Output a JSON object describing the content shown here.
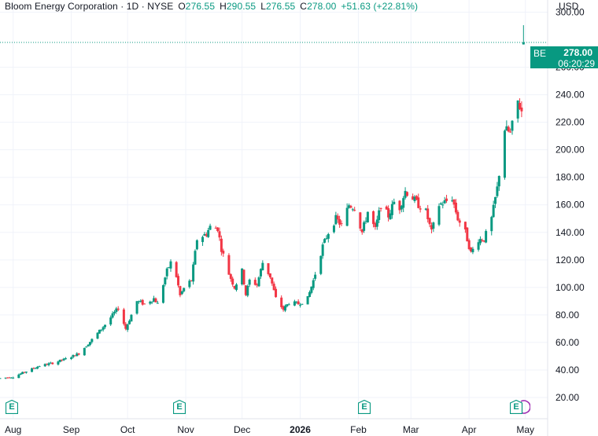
{
  "legend": {
    "title": "Bloom Energy Corporation · 1D · NYSE",
    "open_label": "O",
    "open": "276.55",
    "high_label": "H",
    "high": "290.55",
    "low_label": "L",
    "low": "276.55",
    "close_label": "C",
    "close": "278.00",
    "change": "+51.63 (+22.81%)"
  },
  "currency": "USD",
  "price_tag": {
    "ticker": "BE",
    "price": "278.00",
    "countdown": "06:20:29"
  },
  "earnings_markers": [
    {
      "label": "E"
    },
    {
      "label": "E"
    },
    {
      "label": "E"
    },
    {
      "label": "E"
    }
  ],
  "colors": {
    "up": "#089981",
    "down": "#f23645",
    "grid": "#f0f3fa",
    "text": "#131722"
  },
  "chart_data": {
    "type": "candlestick",
    "ylim": [
      12,
      302
    ],
    "yticks": [
      20,
      40,
      60,
      80,
      100,
      120,
      140,
      160,
      180,
      200,
      220,
      240,
      260,
      300
    ],
    "ytick_labels": [
      "20.00",
      "40.00",
      "60.00",
      "80.00",
      "100.00",
      "120.00",
      "140.00",
      "160.00",
      "180.00",
      "200.00",
      "220.00",
      "240.00",
      "260.00",
      "300.00"
    ],
    "x_range": [
      "2025-07-25",
      "2026-05-07"
    ],
    "xticks": [
      {
        "date": "2025-08-01",
        "label": "Aug"
      },
      {
        "date": "2025-09-01",
        "label": "Sep"
      },
      {
        "date": "2025-10-01",
        "label": "Oct"
      },
      {
        "date": "2025-11-01",
        "label": "Nov"
      },
      {
        "date": "2025-12-01",
        "label": "Dec"
      },
      {
        "date": "2026-01-01",
        "label": "2026"
      },
      {
        "date": "2026-02-01",
        "label": "Feb"
      },
      {
        "date": "2026-03-01",
        "label": "Mar"
      },
      {
        "date": "2026-04-01",
        "label": "Apr"
      },
      {
        "date": "2026-05-01",
        "label": "May"
      }
    ],
    "earnings_dates": [
      "2025-07-31",
      "2025-10-28",
      "2026-02-02",
      "2026-04-28"
    ],
    "last_price": 278.0,
    "anchors": [
      [
        "2025-07-25",
        34
      ],
      [
        "2025-08-01",
        35
      ],
      [
        "2025-08-08",
        39
      ],
      [
        "2025-08-15",
        43
      ],
      [
        "2025-08-22",
        45
      ],
      [
        "2025-08-29",
        48
      ],
      [
        "2025-09-05",
        52
      ],
      [
        "2025-09-12",
        62
      ],
      [
        "2025-09-19",
        73
      ],
      [
        "2025-09-26",
        85
      ],
      [
        "2025-09-30",
        70
      ],
      [
        "2025-10-03",
        80
      ],
      [
        "2025-10-06",
        90
      ],
      [
        "2025-10-10",
        88
      ],
      [
        "2025-10-15",
        92
      ],
      [
        "2025-10-17",
        88
      ],
      [
        "2025-10-22",
        112
      ],
      [
        "2025-10-24",
        118
      ],
      [
        "2025-10-27",
        108
      ],
      [
        "2025-10-29",
        94
      ],
      [
        "2025-11-01",
        102
      ],
      [
        "2025-11-04",
        105
      ],
      [
        "2025-11-07",
        135
      ],
      [
        "2025-11-12",
        139
      ],
      [
        "2025-11-14",
        144
      ],
      [
        "2025-11-18",
        143
      ],
      [
        "2025-11-20",
        128
      ],
      [
        "2025-11-24",
        110
      ],
      [
        "2025-11-27",
        100
      ],
      [
        "2025-12-01",
        112
      ],
      [
        "2025-12-03",
        95
      ],
      [
        "2025-12-05",
        105
      ],
      [
        "2025-12-09",
        102
      ],
      [
        "2025-12-12",
        118
      ],
      [
        "2025-12-16",
        108
      ],
      [
        "2025-12-19",
        92
      ],
      [
        "2025-12-23",
        84
      ],
      [
        "2025-12-26",
        89
      ],
      [
        "2025-12-31",
        88
      ],
      [
        "2026-01-05",
        92
      ],
      [
        "2026-01-08",
        105
      ],
      [
        "2026-01-13",
        130
      ],
      [
        "2026-01-16",
        140
      ],
      [
        "2026-01-20",
        150
      ],
      [
        "2026-01-23",
        145
      ],
      [
        "2026-01-27",
        160
      ],
      [
        "2026-01-30",
        158
      ],
      [
        "2026-02-03",
        140
      ],
      [
        "2026-02-06",
        155
      ],
      [
        "2026-02-10",
        142
      ],
      [
        "2026-02-13",
        160
      ],
      [
        "2026-02-17",
        152
      ],
      [
        "2026-02-20",
        162
      ],
      [
        "2026-02-23",
        158
      ],
      [
        "2026-02-26",
        170
      ],
      [
        "2026-03-02",
        165
      ],
      [
        "2026-03-05",
        160
      ],
      [
        "2026-03-09",
        155
      ],
      [
        "2026-03-12",
        140
      ],
      [
        "2026-03-16",
        160
      ],
      [
        "2026-03-19",
        162
      ],
      [
        "2026-03-23",
        165
      ],
      [
        "2026-03-26",
        150
      ],
      [
        "2026-03-30",
        140
      ],
      [
        "2026-04-02",
        125
      ],
      [
        "2026-04-06",
        135
      ],
      [
        "2026-04-09",
        135
      ],
      [
        "2026-04-13",
        150
      ],
      [
        "2026-04-16",
        172
      ],
      [
        "2026-04-20",
        215
      ],
      [
        "2026-04-23",
        212
      ],
      [
        "2026-04-27",
        235
      ],
      [
        "2026-04-29",
        228
      ]
    ]
  }
}
